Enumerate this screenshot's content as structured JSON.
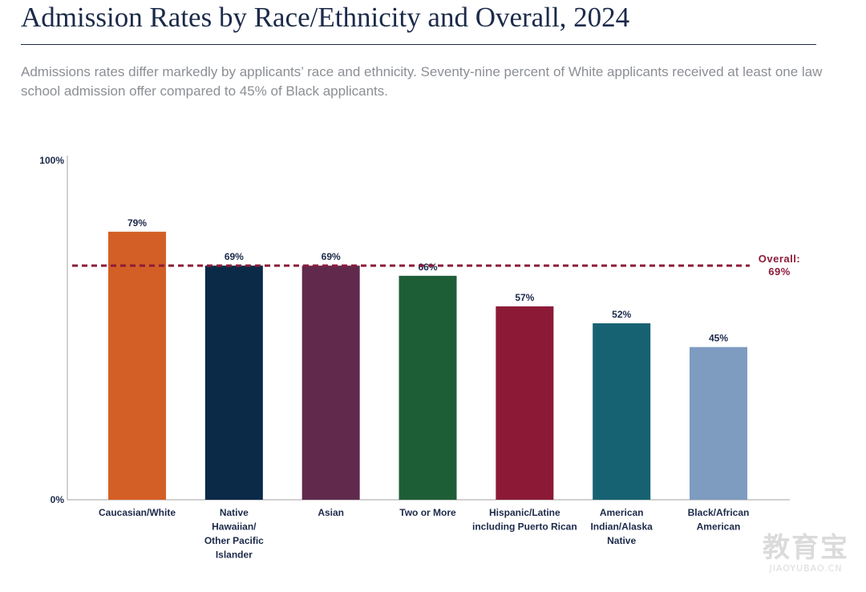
{
  "title": "Admission Rates by Race/Ethnicity and Overall, 2024",
  "subtitle": "Admissions rates differ markedly by applicants’ race and ethnicity. Seventy-nine percent of White applicants received at least one law school admission offer compared to 45% of Black applicants.",
  "watermark": {
    "text": "教育宝",
    "domain": "JIAOYUBAO.CN"
  },
  "chart_data": {
    "type": "bar",
    "categories": [
      [
        "Caucasian/White"
      ],
      [
        "Native",
        "Hawaiian/",
        "Other Pacific",
        "Islander"
      ],
      [
        "Asian"
      ],
      [
        "Two or More"
      ],
      [
        "Hispanic/Latine",
        "including Puerto Rican"
      ],
      [
        "American",
        "Indian/Alaska",
        "Native"
      ],
      [
        "Black/African",
        "American"
      ]
    ],
    "values": [
      79,
      69,
      69,
      66,
      57,
      52,
      45
    ],
    "value_labels": [
      "79%",
      "69%",
      "69%",
      "66%",
      "57%",
      "52%",
      "45%"
    ],
    "colors": [
      "#d45f26",
      "#0b2a48",
      "#612a4d",
      "#1e5e37",
      "#8c1a37",
      "#176272",
      "#7e9bc0"
    ],
    "ylim": [
      0,
      100
    ],
    "ytick_labels": [
      "0%",
      "100%"
    ],
    "reference_line": {
      "value": 69,
      "label_lines": [
        "Overall:",
        "69%"
      ],
      "color": "#8c1c3a"
    },
    "grid": false,
    "legend": "none"
  }
}
